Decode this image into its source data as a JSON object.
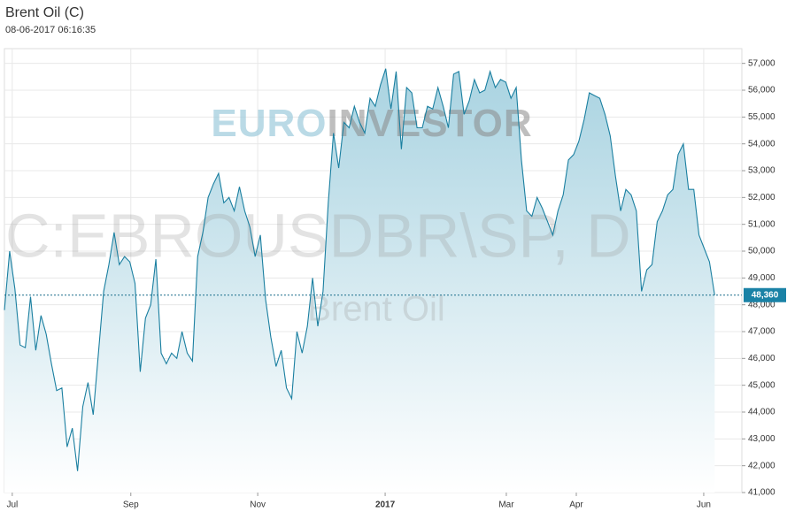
{
  "chart_data": {
    "type": "area",
    "title": "Brent Oil (C)",
    "subtitle": "08-06-2017 06:16:35",
    "watermark": {
      "brand_a": "EURO",
      "brand_b": "INVESTOR",
      "symbol": "C:EBROUSDBR\\SP, D",
      "name": "Brent Oil"
    },
    "color": "#1a7fa0",
    "values": [
      47800,
      50000,
      48600,
      46500,
      46400,
      48300,
      46300,
      47600,
      46900,
      45800,
      44800,
      44900,
      42700,
      43400,
      41800,
      44200,
      45100,
      43900,
      46200,
      48500,
      49500,
      50700,
      49500,
      49800,
      49600,
      48800,
      45500,
      47500,
      48000,
      49700,
      46200,
      45800,
      46200,
      46000,
      47000,
      46200,
      45900,
      49800,
      50700,
      52000,
      52500,
      52900,
      51800,
      52000,
      51500,
      52400,
      51500,
      50900,
      49800,
      50600,
      48200,
      46800,
      45700,
      46300,
      44900,
      44500,
      47000,
      46200,
      47200,
      49000,
      47200,
      48500,
      51800,
      54400,
      53100,
      54800,
      54600,
      55400,
      54800,
      54400,
      55700,
      55400,
      56200,
      56800,
      55300,
      56700,
      53800,
      56100,
      55900,
      54600,
      54600,
      55400,
      55300,
      56100,
      55400,
      54600,
      56600,
      56700,
      55100,
      55600,
      56400,
      55900,
      56000,
      56700,
      56100,
      56400,
      56300,
      55700,
      56100,
      53400,
      51500,
      51300,
      52000,
      51600,
      51100,
      50600,
      51500,
      52100,
      53400,
      53600,
      54100,
      54900,
      55900,
      55800,
      55700,
      55100,
      54300,
      52800,
      51500,
      52300,
      52100,
      51500,
      48500,
      49300,
      49500,
      51100,
      51500,
      52100,
      52300,
      53600,
      54000,
      52300,
      52300,
      50600,
      50100,
      49600,
      48360
    ],
    "current": {
      "value": 48360,
      "label": "48,360"
    },
    "xlim": [
      0,
      141.2
    ],
    "xticks": [
      {
        "value": 1.5,
        "label": "Jul"
      },
      {
        "value": 24.2,
        "label": "Sep"
      },
      {
        "value": 48.5,
        "label": "Nov"
      },
      {
        "value": 72.9,
        "label": "2017"
      },
      {
        "value": 96.1,
        "label": "Mar"
      },
      {
        "value": 109.5,
        "label": "Apr"
      },
      {
        "value": 133.9,
        "label": "Jun"
      }
    ],
    "ylim": [
      41000,
      57550
    ],
    "yticks": [
      {
        "value": 41000,
        "label": "41,000"
      },
      {
        "value": 42000,
        "label": "42,000"
      },
      {
        "value": 43000,
        "label": "43,000"
      },
      {
        "value": 44000,
        "label": "44,000"
      },
      {
        "value": 45000,
        "label": "45,000"
      },
      {
        "value": 46000,
        "label": "46,000"
      },
      {
        "value": 47000,
        "label": "47,000"
      },
      {
        "value": 48000,
        "label": "48,000"
      },
      {
        "value": 49000,
        "label": "49,000"
      },
      {
        "value": 50000,
        "label": "50,000"
      },
      {
        "value": 51000,
        "label": "51,000"
      },
      {
        "value": 52000,
        "label": "52,000"
      },
      {
        "value": 53000,
        "label": "53,000"
      },
      {
        "value": 54000,
        "label": "54,000"
      },
      {
        "value": 55000,
        "label": "55,000"
      },
      {
        "value": 56000,
        "label": "56,000"
      },
      {
        "value": 57000,
        "label": "57,000"
      }
    ],
    "grid": true
  }
}
